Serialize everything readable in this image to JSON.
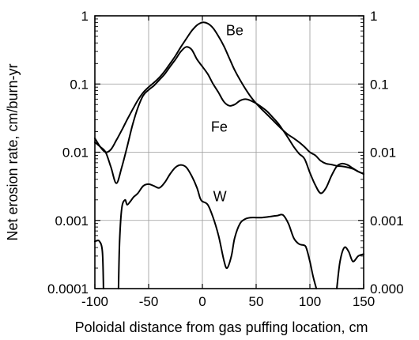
{
  "chart_data": {
    "type": "line",
    "xlabel": "Poloidal distance from gas puffing location, cm",
    "ylabel": "Net erosion rate, cm/burn-yr",
    "xlim": [
      -100,
      150
    ],
    "ylim": [
      0.0001,
      1
    ],
    "yscale": "log",
    "grid": true,
    "x_ticks": [
      -100,
      -50,
      0,
      50,
      100,
      150
    ],
    "x_tick_labels": [
      "-100",
      "-50",
      "0",
      "50",
      "100",
      "150"
    ],
    "y_ticks": [
      0.0001,
      0.001,
      0.01,
      0.1,
      1
    ],
    "y_tick_labels_left": [
      "0.0001",
      "0.001",
      "0.01",
      "0.1",
      "1"
    ],
    "y_tick_labels_right": [
      "0.000",
      "0.001",
      "0.01",
      "0.1",
      "1"
    ],
    "series": [
      {
        "name": "Be",
        "x": [
          -100,
          -95,
          -90,
          -85,
          -80,
          -75,
          -70,
          -65,
          -60,
          -55,
          -50,
          -45,
          -40,
          -35,
          -30,
          -25,
          -20,
          -15,
          -10,
          -5,
          0,
          5,
          10,
          15,
          20,
          25,
          30,
          35,
          40,
          45,
          50,
          55,
          60,
          65,
          70,
          75,
          80,
          85,
          90,
          95,
          100,
          105,
          110,
          115,
          120,
          125,
          130,
          135,
          140,
          145,
          150
        ],
        "y": [
          0.016,
          0.012,
          0.01,
          0.011,
          0.015,
          0.021,
          0.03,
          0.042,
          0.058,
          0.075,
          0.09,
          0.105,
          0.125,
          0.155,
          0.2,
          0.26,
          0.35,
          0.46,
          0.6,
          0.73,
          0.8,
          0.77,
          0.66,
          0.5,
          0.36,
          0.24,
          0.16,
          0.115,
          0.085,
          0.065,
          0.052,
          0.043,
          0.036,
          0.03,
          0.025,
          0.021,
          0.018,
          0.016,
          0.014,
          0.012,
          0.01,
          0.009,
          0.0075,
          0.0068,
          0.0066,
          0.0063,
          0.0062,
          0.006,
          0.0057,
          0.0052,
          0.0048
        ]
      },
      {
        "name": "Fe",
        "x": [
          -100,
          -95,
          -90,
          -85,
          -80,
          -75,
          -70,
          -65,
          -60,
          -55,
          -50,
          -45,
          -40,
          -35,
          -30,
          -25,
          -20,
          -15,
          -10,
          -5,
          0,
          5,
          10,
          15,
          20,
          25,
          30,
          35,
          40,
          45,
          50,
          55,
          60,
          65,
          70,
          75,
          80,
          85,
          90,
          95,
          100,
          105,
          110,
          115,
          120,
          125,
          130,
          135,
          140,
          145,
          150
        ],
        "y": [
          0.014,
          0.012,
          0.01,
          0.006,
          0.0035,
          0.006,
          0.012,
          0.025,
          0.045,
          0.068,
          0.082,
          0.095,
          0.115,
          0.14,
          0.18,
          0.23,
          0.3,
          0.35,
          0.32,
          0.23,
          0.18,
          0.14,
          0.1,
          0.075,
          0.055,
          0.048,
          0.05,
          0.057,
          0.06,
          0.057,
          0.052,
          0.046,
          0.04,
          0.033,
          0.027,
          0.021,
          0.016,
          0.012,
          0.0095,
          0.008,
          0.005,
          0.0033,
          0.0025,
          0.003,
          0.0045,
          0.0062,
          0.0068,
          0.0065,
          0.0058,
          0.0052,
          0.0048
        ]
      },
      {
        "name": "W",
        "segments": [
          {
            "x": [
              -100,
              -96,
              -93,
              -92
            ],
            "y": [
              0.00049,
              0.0005,
              0.00035,
              0.0001
            ]
          },
          {
            "x": [
              -78,
              -77,
              -75,
              -72,
              -70,
              -67,
              -64,
              -60,
              -55,
              -50,
              -45,
              -40,
              -35,
              -30,
              -25,
              -20,
              -15,
              -10,
              -5,
              -2,
              0,
              5,
              10,
              15,
              20,
              23,
              27,
              30,
              35,
              40,
              45,
              50,
              55,
              60,
              65,
              70,
              75,
              80,
              85,
              90,
              95,
              97,
              100,
              103,
              106
            ],
            "y": [
              0.0001,
              0.0005,
              0.0015,
              0.002,
              0.0017,
              0.0019,
              0.0022,
              0.0025,
              0.0032,
              0.0034,
              0.0032,
              0.003,
              0.0036,
              0.0048,
              0.006,
              0.0065,
              0.006,
              0.0045,
              0.003,
              0.0021,
              0.0019,
              0.0017,
              0.0011,
              0.0006,
              0.00026,
              0.0002,
              0.0003,
              0.00055,
              0.0009,
              0.00105,
              0.0011,
              0.0011,
              0.0011,
              0.00112,
              0.00115,
              0.00118,
              0.0012,
              0.0009,
              0.00055,
              0.00045,
              0.00043,
              0.00038,
              0.00025,
              0.00015,
              0.0001
            ]
          },
          {
            "x": [
              125,
              128,
              132,
              136,
              140,
              145,
              150
            ],
            "y": [
              0.0001,
              0.00025,
              0.0004,
              0.00035,
              0.00025,
              0.0003,
              0.00032
            ]
          }
        ]
      }
    ],
    "annotations": [
      {
        "text": "Be",
        "x": 22,
        "y": 0.52
      },
      {
        "text": "Fe",
        "x": 8,
        "y": 0.02
      },
      {
        "text": "W",
        "x": 10,
        "y": 0.0019
      }
    ]
  }
}
